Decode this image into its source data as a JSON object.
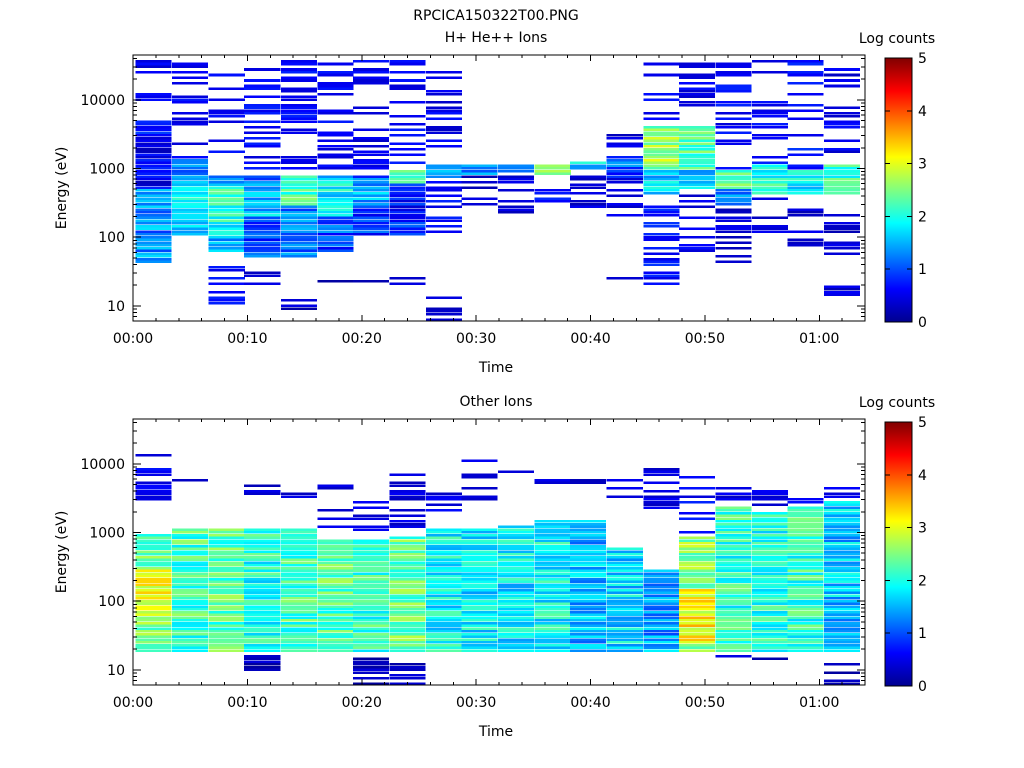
{
  "figure": {
    "title": "RPCICA150322T00.PNG"
  },
  "colormap": [
    "#00008f",
    "#0000ff",
    "#0080ff",
    "#00ffff",
    "#80ff80",
    "#ffff00",
    "#ff8000",
    "#ff0000",
    "#800000"
  ],
  "chart_data": [
    {
      "type": "heatmap",
      "title": "H+ He++ Ions",
      "xlabel": "Time",
      "ylabel": "Energy (eV)",
      "xlim": [
        0,
        64
      ],
      "ylim": [
        6,
        45000
      ],
      "yscale": "log",
      "xticks": [
        0,
        10,
        20,
        30,
        40,
        50,
        60
      ],
      "xticklabels": [
        "00:00",
        "00:10",
        "00:20",
        "00:30",
        "00:40",
        "00:50",
        "01:00"
      ],
      "yticks": [
        10,
        100,
        1000,
        10000
      ],
      "yticklabels": [
        "10",
        "100",
        "1000",
        "10000"
      ],
      "colorbar": {
        "label": "Log counts",
        "range": [
          0,
          5
        ],
        "ticks": [
          "0",
          "1",
          "2",
          "3",
          "4",
          "5"
        ]
      },
      "time_bins": [
        1.8,
        5.0,
        8.2,
        11.3,
        14.5,
        17.7,
        20.8,
        24.0,
        27.2,
        30.3,
        33.5,
        36.7,
        39.8,
        43.0,
        46.2,
        49.3,
        52.5,
        55.7,
        58.8,
        62.0
      ],
      "energy_range_eV": [
        6,
        42000
      ],
      "energy_bins": 96,
      "columns": [
        {
          "bands": [
            [
              40,
              500,
              1.3
            ],
            [
              70,
              5000,
              0.5
            ]
          ],
          "sparse": [
            [
              8000,
              40000,
              0.3
            ]
          ],
          "seed": 1
        },
        {
          "bands": [
            [
              100,
              800,
              1.7
            ],
            [
              400,
              1500,
              1.1
            ]
          ],
          "sparse": [
            [
              2000,
              40000,
              0.4
            ]
          ],
          "seed": 2
        },
        {
          "bands": [
            [
              60,
              800,
              1.5
            ],
            [
              100,
              600,
              2.0
            ]
          ],
          "sparse": [
            [
              1000,
              40000,
              0.4
            ],
            [
              10,
              40,
              0.4
            ]
          ],
          "seed": 3
        },
        {
          "bands": [
            [
              50,
              800,
              1.0
            ],
            [
              200,
              600,
              1.6
            ]
          ],
          "sparse": [
            [
              1000,
              40000,
              0.4
            ],
            [
              20,
              40,
              0.2
            ]
          ],
          "seed": 4
        },
        {
          "bands": [
            [
              50,
              800,
              1.2
            ],
            [
              300,
              800,
              2.2
            ]
          ],
          "sparse": [
            [
              1000,
              40000,
              0.4
            ],
            [
              6,
              12,
              0.1
            ]
          ],
          "seed": 5
        },
        {
          "bands": [
            [
              60,
              800,
              1.0
            ],
            [
              200,
              700,
              1.8
            ]
          ],
          "sparse": [
            [
              1000,
              40000,
              0.4
            ],
            [
              20,
              30,
              0.1
            ]
          ],
          "seed": 6
        },
        {
          "bands": [
            [
              100,
              800,
              0.9
            ],
            [
              300,
              700,
              1.4
            ]
          ],
          "sparse": [
            [
              1000,
              40000,
              0.3
            ],
            [
              20,
              30,
              0.1
            ]
          ],
          "seed": 7
        },
        {
          "bands": [
            [
              100,
              1000,
              0.8
            ],
            [
              600,
              1000,
              2.1
            ]
          ],
          "sparse": [
            [
              1000,
              40000,
              0.4
            ],
            [
              20,
              30,
              0.1
            ]
          ],
          "seed": 8
        },
        {
          "bands": [
            [
              700,
              1200,
              1.5
            ]
          ],
          "sparse": [
            [
              100,
              900,
              0.4
            ],
            [
              2000,
              40000,
              0.3
            ],
            [
              6,
              20,
              0.1
            ]
          ],
          "seed": 9
        },
        {
          "bands": [
            [
              800,
              1100,
              1.4
            ]
          ],
          "sparse": [
            [
              300,
              800,
              0.2
            ],
            [
              30000,
              38000,
              0.2
            ]
          ],
          "seed": 10
        },
        {
          "bands": [
            [
              900,
              1200,
              1.2
            ]
          ],
          "sparse": [
            [
              200,
              800,
              0.2
            ]
          ],
          "seed": 11
        },
        {
          "bands": [
            [
              800,
              1200,
              2.3
            ]
          ],
          "sparse": [
            [
              300,
              600,
              0.5
            ]
          ],
          "seed": 12
        },
        {
          "bands": [
            [
              1000,
              1300,
              1.7
            ]
          ],
          "sparse": [
            [
              200,
              800,
              0.2
            ]
          ],
          "seed": 13
        },
        {
          "bands": [
            [
              700,
              1500,
              1.0
            ]
          ],
          "sparse": [
            [
              200,
              700,
              0.2
            ],
            [
              25,
              30,
              0.1
            ],
            [
              2000,
              4000,
              0.2
            ]
          ],
          "seed": 14
        },
        {
          "bands": [
            [
              1000,
              4000,
              2.6
            ],
            [
              400,
              1000,
              1.6
            ]
          ],
          "sparse": [
            [
              20,
              400,
              0.5
            ],
            [
              5000,
              40000,
              0.4
            ]
          ],
          "seed": 15
        },
        {
          "bands": [
            [
              1000,
              4000,
              2.3
            ],
            [
              500,
              1000,
              1.5
            ]
          ],
          "sparse": [
            [
              60,
              400,
              0.3
            ],
            [
              5000,
              40000,
              0.3
            ]
          ],
          "seed": 16
        },
        {
          "bands": [
            [
              500,
              1000,
              2.4
            ],
            [
              300,
              600,
              1.2
            ]
          ],
          "sparse": [
            [
              40,
              300,
              0.2
            ],
            [
              1000,
              40000,
              0.4
            ],
            [
              18,
              20,
              0.1
            ]
          ],
          "seed": 17
        },
        {
          "bands": [
            [
              400,
              1200,
              2.0
            ]
          ],
          "sparse": [
            [
              80,
              400,
              0.2
            ],
            [
              1000,
              40000,
              0.4
            ]
          ],
          "seed": 18
        },
        {
          "bands": [
            [
              400,
              1000,
              1.9
            ]
          ],
          "sparse": [
            [
              50,
              300,
              0.2
            ],
            [
              1000,
              40000,
              0.5
            ]
          ],
          "seed": 19
        },
        {
          "bands": [
            [
              400,
              1200,
              2.1
            ]
          ],
          "sparse": [
            [
              50,
              300,
              0.2
            ],
            [
              1000,
              30000,
              0.3
            ],
            [
              11,
              20,
              0.2
            ]
          ],
          "seed": 20
        }
      ]
    },
    {
      "type": "heatmap",
      "title": "Other Ions",
      "xlabel": "Time",
      "ylabel": "Energy (eV)",
      "xlim": [
        0,
        64
      ],
      "ylim": [
        6,
        45000
      ],
      "yscale": "log",
      "xticks": [
        0,
        10,
        20,
        30,
        40,
        50,
        60
      ],
      "xticklabels": [
        "00:00",
        "00:10",
        "00:20",
        "00:30",
        "00:40",
        "00:50",
        "01:00"
      ],
      "yticks": [
        10,
        100,
        1000,
        10000
      ],
      "yticklabels": [
        "10",
        "100",
        "1000",
        "10000"
      ],
      "colorbar": {
        "label": "Log counts",
        "range": [
          0,
          5
        ],
        "ticks": [
          "0",
          "1",
          "2",
          "3",
          "4",
          "5"
        ]
      },
      "time_bins": [
        1.8,
        5.0,
        8.2,
        11.3,
        14.5,
        17.7,
        20.8,
        24.0,
        27.2,
        30.3,
        33.5,
        36.7,
        39.8,
        43.0,
        46.2,
        49.3,
        52.5,
        55.7,
        58.8,
        62.0
      ],
      "energy_range_eV": [
        6,
        42000
      ],
      "energy_bins": 96,
      "columns": [
        {
          "bands": [
            [
              18,
              1000,
              2.4
            ],
            [
              60,
              300,
              3.0
            ]
          ],
          "sparse": [
            [
              2000,
              14000,
              0.4
            ]
          ],
          "seed": 21
        },
        {
          "bands": [
            [
              18,
              1200,
              2.2
            ]
          ],
          "sparse": [
            [
              5000,
              7000,
              0.2
            ]
          ],
          "seed": 22
        },
        {
          "bands": [
            [
              18,
              1200,
              2.3
            ]
          ],
          "sparse": [
            [
              4000,
              6000,
              0.2
            ]
          ],
          "seed": 23
        },
        {
          "bands": [
            [
              18,
              1200,
              2.0
            ]
          ],
          "sparse": [
            [
              3000,
              5000,
              0.2
            ],
            [
              6,
              18,
              0.05
            ]
          ],
          "seed": 24
        },
        {
          "bands": [
            [
              18,
              1200,
              2.2
            ]
          ],
          "sparse": [
            [
              3000,
              5000,
              0.2
            ]
          ],
          "seed": 25
        },
        {
          "bands": [
            [
              18,
              800,
              2.3
            ]
          ],
          "sparse": [
            [
              1000,
              5000,
              0.3
            ]
          ],
          "seed": 26
        },
        {
          "bands": [
            [
              18,
              800,
              2.1
            ]
          ],
          "sparse": [
            [
              1000,
              3000,
              0.2
            ],
            [
              6,
              15,
              0.05
            ]
          ],
          "seed": 27
        },
        {
          "bands": [
            [
              18,
              900,
              2.4
            ]
          ],
          "sparse": [
            [
              1000,
              8000,
              0.2
            ],
            [
              6,
              15,
              0.05
            ]
          ],
          "seed": 28
        },
        {
          "bands": [
            [
              18,
              1200,
              1.9
            ]
          ],
          "sparse": [
            [
              2000,
              6000,
              0.3
            ]
          ],
          "seed": 29
        },
        {
          "bands": [
            [
              18,
              1200,
              1.8
            ]
          ],
          "sparse": [
            [
              3000,
              12000,
              0.2
            ]
          ],
          "seed": 30
        },
        {
          "bands": [
            [
              18,
              1300,
              1.8
            ]
          ],
          "sparse": [
            [
              5000,
              9000,
              0.2
            ]
          ],
          "seed": 31
        },
        {
          "bands": [
            [
              18,
              1500,
              1.9
            ]
          ],
          "sparse": [
            [
              5000,
              6000,
              0.2
            ]
          ],
          "seed": 32
        },
        {
          "bands": [
            [
              18,
              1500,
              1.5
            ]
          ],
          "sparse": [
            [
              5000,
              6000,
              0.2
            ]
          ],
          "seed": 33
        },
        {
          "bands": [
            [
              18,
              600,
              1.7
            ]
          ],
          "sparse": [
            [
              3000,
              6000,
              0.3
            ]
          ],
          "seed": 34
        },
        {
          "bands": [
            [
              18,
              300,
              1.4
            ]
          ],
          "sparse": [
            [
              2000,
              9000,
              0.2
            ]
          ],
          "seed": 35
        },
        {
          "bands": [
            [
              18,
              900,
              2.5
            ],
            [
              25,
              150,
              3.1
            ]
          ],
          "sparse": [
            [
              1000,
              14000,
              0.4
            ]
          ],
          "seed": 36
        },
        {
          "bands": [
            [
              18,
              2500,
              2.1
            ]
          ],
          "sparse": [
            [
              3000,
              4500,
              0.3
            ],
            [
              10,
              18,
              0.1
            ]
          ],
          "seed": 37
        },
        {
          "bands": [
            [
              18,
              2000,
              2.0
            ]
          ],
          "sparse": [
            [
              2000,
              4000,
              0.3
            ],
            [
              6,
              18,
              0.05
            ]
          ],
          "seed": 38
        },
        {
          "bands": [
            [
              18,
              2500,
              2.1
            ]
          ],
          "sparse": [
            [
              2000,
              3500,
              0.4
            ]
          ],
          "seed": 39
        },
        {
          "bands": [
            [
              18,
              3000,
              1.6
            ]
          ],
          "sparse": [
            [
              3000,
              5000,
              0.3
            ],
            [
              6,
              12,
              0.05
            ]
          ],
          "seed": 40
        }
      ]
    }
  ]
}
